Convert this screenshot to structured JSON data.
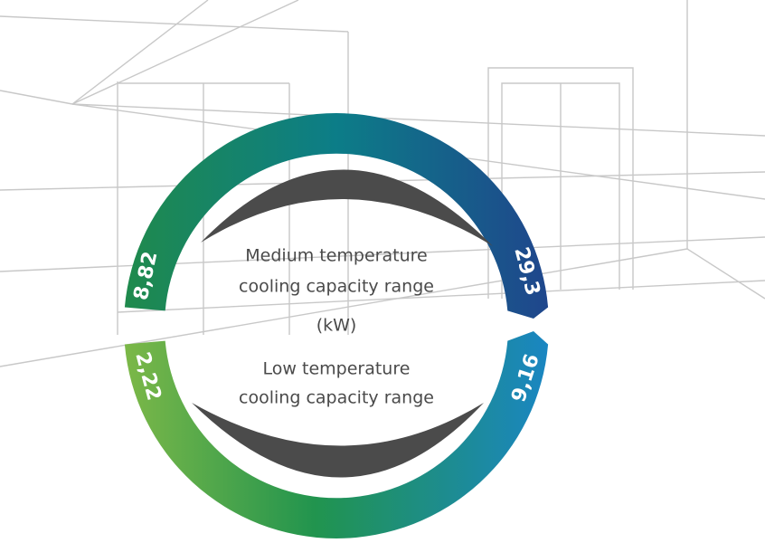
{
  "medium": {
    "label_lines": [
      "Medium temperature",
      "cooling capacity range"
    ],
    "min": "8,82",
    "max": "29,3"
  },
  "unit": "(kW)",
  "low": {
    "label_lines": [
      "Low temperature",
      "cooling capacity range"
    ],
    "min": "2,22",
    "max": "9,16"
  }
}
